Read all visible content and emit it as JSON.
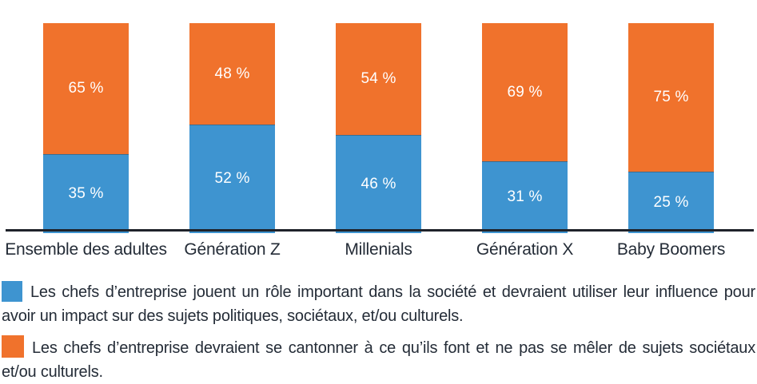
{
  "chart_data": {
    "type": "bar",
    "stacked": true,
    "orientation": "vertical",
    "title": "",
    "xlabel": "",
    "ylabel": "",
    "ylim": [
      0,
      100
    ],
    "unit": "%",
    "grid": false,
    "legend_position": "bottom",
    "categories": [
      "Ensemble des adultes",
      "Génération Z",
      "Millenials",
      "Génération X",
      "Baby Boomers"
    ],
    "series": [
      {
        "name": "Les chefs d’entreprise jouent un rôle important dans la société et devraient utiliser leur influence pour avoir un impact sur des sujets politiques, sociétaux, et/ou culturels.",
        "color": "#3E94D0",
        "position": "bottom",
        "values": [
          35,
          52,
          46,
          31,
          25
        ],
        "labels": [
          "35 %",
          "52 %",
          "46 %",
          "31 %",
          "25 %"
        ]
      },
      {
        "name": "Les chefs d’entreprise devraient se cantonner à ce qu’ils font et ne pas se mêler de sujets sociétaux et/ou culturels.",
        "color": "#F0722C",
        "position": "top",
        "values": [
          65,
          48,
          54,
          69,
          75
        ],
        "labels": [
          "65 %",
          "48 %",
          "54 %",
          "69 %",
          "75 %"
        ]
      }
    ],
    "colors": {
      "blue": "#3E94D0",
      "orange": "#F0722C",
      "value_label": "#FFFFFF",
      "axis_line": "#1E222A",
      "text": "#242C37"
    }
  }
}
